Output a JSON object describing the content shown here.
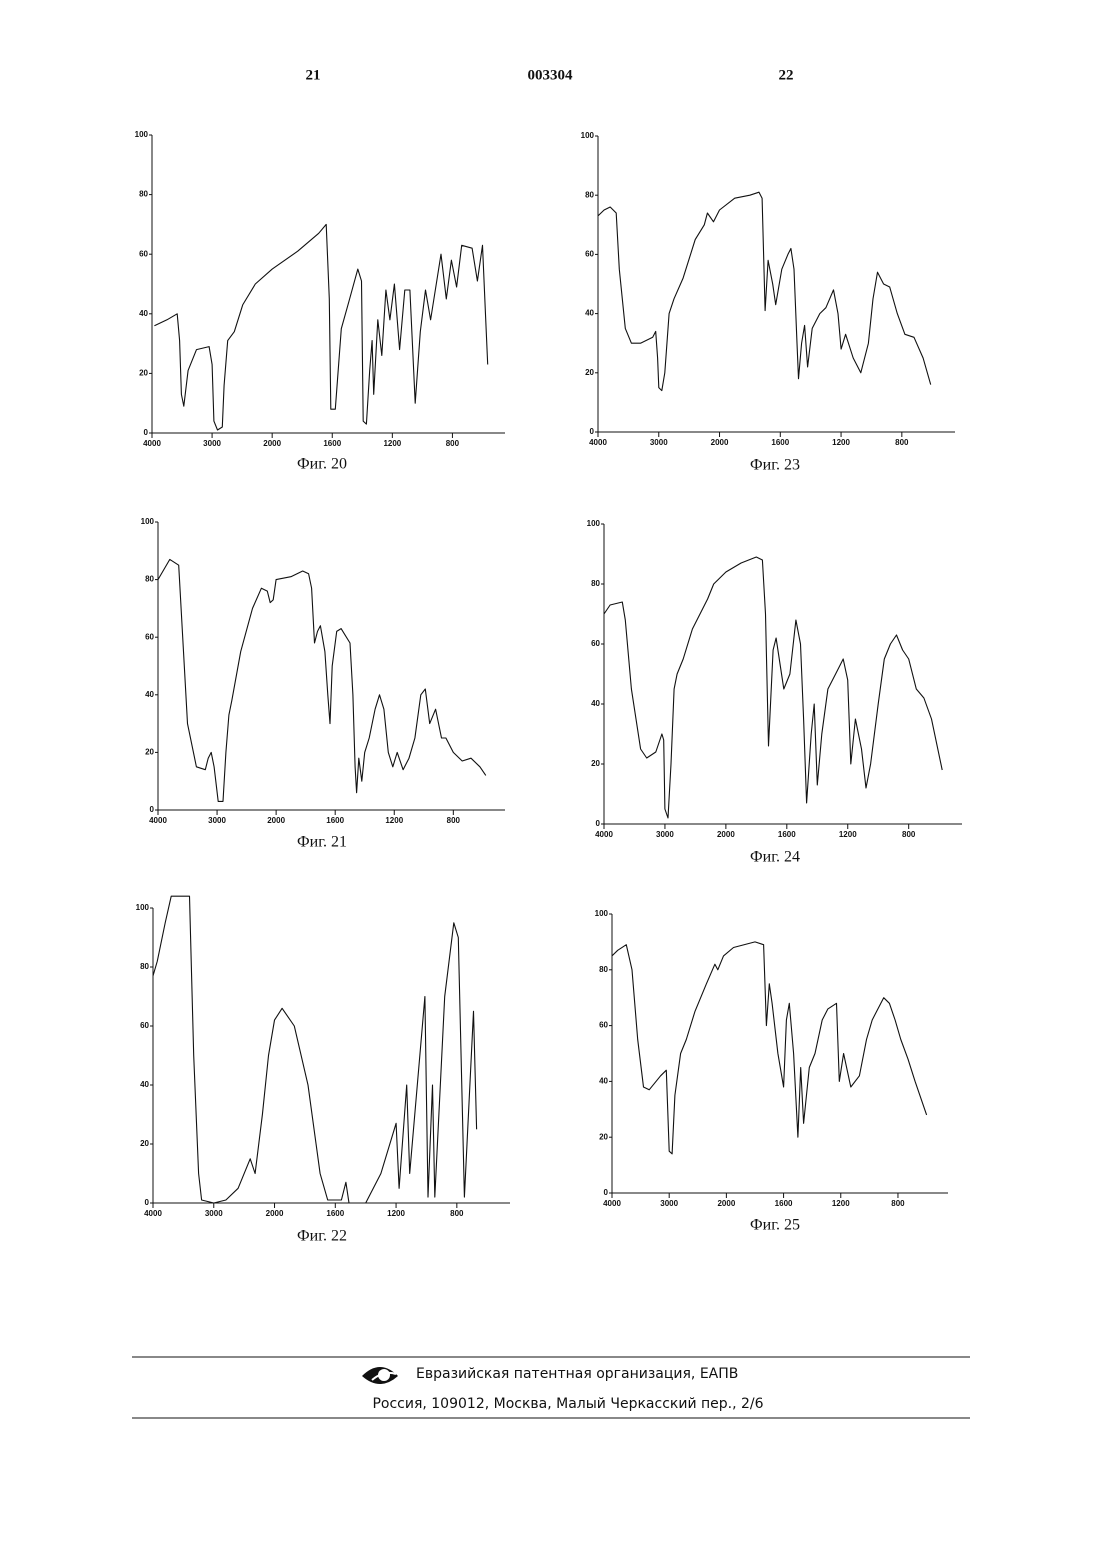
{
  "header": {
    "left_page": "21",
    "doc_number": "003304",
    "right_page": "22"
  },
  "chart_data": [
    {
      "type": "line",
      "caption": "Фиг. 20",
      "color": "#111111",
      "x": [
        3960,
        3750,
        3580,
        3540,
        3510,
        3470,
        3400,
        3260,
        3050,
        3000,
        2970,
        2910,
        2830,
        2800,
        2740,
        2630,
        2490,
        2280,
        2000,
        1830,
        1690,
        1640,
        1620,
        1610,
        1580,
        1540,
        1490,
        1430,
        1405,
        1394,
        1373,
        1351,
        1335,
        1324,
        1297,
        1270,
        1243,
        1216,
        1186,
        1152,
        1117,
        1083,
        1048,
        1014,
        979,
        945,
        876,
        841,
        807,
        772,
        738,
        669,
        634,
        600,
        579,
        565
      ],
      "values": [
        36,
        38,
        40,
        31,
        13,
        9,
        21,
        28,
        29,
        23,
        4,
        1,
        2,
        16,
        31,
        34,
        43,
        50,
        55,
        61,
        67,
        70,
        45,
        8,
        8,
        35,
        44,
        55,
        51,
        4,
        3,
        21,
        31,
        13,
        38,
        26,
        48,
        38,
        50,
        28,
        48,
        48,
        10,
        34,
        48,
        38,
        60,
        45,
        58,
        49,
        63,
        62,
        51,
        63,
        39,
        23
      ],
      "xlim": [
        4000,
        450
      ],
      "xticks": [
        4000,
        3000,
        2000,
        1600,
        1200,
        800
      ],
      "ylim": [
        0,
        100
      ],
      "yticks": [
        0,
        20,
        40,
        60,
        80,
        100
      ]
    },
    {
      "type": "line",
      "caption": "Фиг. 23",
      "color": "#111111",
      "x": [
        4000,
        3900,
        3800,
        3700,
        3650,
        3550,
        3450,
        3300,
        3100,
        3050,
        3020,
        3000,
        2950,
        2900,
        2830,
        2750,
        2600,
        2400,
        2250,
        2200,
        2100,
        2000,
        1900,
        1800,
        1740,
        1720,
        1700,
        1680,
        1650,
        1630,
        1590,
        1550,
        1530,
        1510,
        1490,
        1480,
        1460,
        1440,
        1420,
        1390,
        1340,
        1300,
        1250,
        1220,
        1200,
        1170,
        1120,
        1070,
        1020,
        990,
        960,
        920,
        880,
        830,
        780,
        720,
        660,
        610
      ],
      "values": [
        73,
        75,
        76,
        74,
        55,
        35,
        30,
        30,
        32,
        34,
        25,
        15,
        14,
        20,
        40,
        45,
        52,
        65,
        70,
        74,
        71,
        75,
        79,
        80,
        81,
        79,
        41,
        58,
        50,
        43,
        55,
        60,
        62,
        55,
        30,
        18,
        30,
        36,
        22,
        35,
        40,
        42,
        48,
        40,
        28,
        33,
        25,
        20,
        30,
        45,
        54,
        50,
        49,
        40,
        33,
        32,
        25,
        16
      ],
      "xlim": [
        4000,
        450
      ],
      "xticks": [
        4000,
        3000,
        2000,
        1600,
        1200,
        800
      ],
      "ylim": [
        0,
        100
      ],
      "yticks": [
        0,
        20,
        40,
        60,
        80,
        100
      ]
    },
    {
      "type": "line",
      "caption": "Фиг. 21",
      "color": "#111111",
      "x": [
        4000,
        3800,
        3650,
        3500,
        3350,
        3200,
        3150,
        3100,
        3050,
        2980,
        2900,
        2850,
        2800,
        2750,
        2600,
        2400,
        2250,
        2150,
        2100,
        2050,
        2000,
        1900,
        1820,
        1780,
        1760,
        1740,
        1720,
        1700,
        1670,
        1650,
        1635,
        1620,
        1590,
        1560,
        1500,
        1480,
        1465,
        1455,
        1440,
        1420,
        1400,
        1370,
        1330,
        1300,
        1270,
        1240,
        1210,
        1180,
        1140,
        1100,
        1060,
        1020,
        990,
        960,
        920,
        880,
        850,
        800,
        740,
        680,
        620,
        580
      ],
      "values": [
        80,
        87,
        85,
        30,
        15,
        14,
        18,
        20,
        15,
        3,
        3,
        20,
        33,
        38,
        55,
        70,
        77,
        76,
        72,
        73,
        80,
        81,
        83,
        82,
        77,
        58,
        62,
        64,
        55,
        40,
        30,
        50,
        62,
        63,
        58,
        40,
        15,
        6,
        18,
        10,
        20,
        25,
        35,
        40,
        35,
        20,
        15,
        20,
        14,
        18,
        25,
        40,
        42,
        30,
        35,
        25,
        25,
        20,
        17,
        18,
        15,
        12
      ],
      "xlim": [
        4000,
        450
      ],
      "xticks": [
        4000,
        3000,
        2000,
        1600,
        1200,
        800
      ],
      "ylim": [
        0,
        100
      ],
      "yticks": [
        0,
        20,
        40,
        60,
        80,
        100
      ]
    },
    {
      "type": "line",
      "caption": "Фиг. 24",
      "color": "#111111",
      "x": [
        4000,
        3900,
        3700,
        3650,
        3550,
        3400,
        3300,
        3150,
        3050,
        3020,
        3000,
        2950,
        2900,
        2850,
        2800,
        2700,
        2550,
        2300,
        2200,
        2100,
        2000,
        1900,
        1800,
        1760,
        1740,
        1720,
        1690,
        1670,
        1620,
        1580,
        1540,
        1510,
        1490,
        1470,
        1440,
        1420,
        1400,
        1370,
        1330,
        1280,
        1230,
        1200,
        1180,
        1150,
        1110,
        1080,
        1050,
        1000,
        960,
        920,
        880,
        840,
        800,
        750,
        700,
        650,
        580
      ],
      "values": [
        70,
        73,
        74,
        68,
        45,
        25,
        22,
        24,
        30,
        28,
        5,
        2,
        20,
        45,
        50,
        55,
        65,
        75,
        80,
        82,
        84,
        87,
        89,
        88,
        70,
        26,
        58,
        62,
        45,
        50,
        68,
        60,
        35,
        7,
        30,
        40,
        13,
        30,
        45,
        50,
        55,
        48,
        20,
        35,
        25,
        12,
        20,
        40,
        55,
        60,
        63,
        58,
        55,
        45,
        42,
        35,
        18
      ],
      "xlim": [
        4000,
        450
      ],
      "xticks": [
        4000,
        3000,
        2000,
        1600,
        1200,
        800
      ],
      "ylim": [
        0,
        100
      ],
      "yticks": [
        0,
        20,
        40,
        60,
        80,
        100
      ]
    },
    {
      "type": "line",
      "caption": "Фиг. 22",
      "color": "#111111",
      "x": [
        4000,
        3930,
        3800,
        3700,
        3400,
        3330,
        3250,
        3200,
        3000,
        2800,
        2600,
        2400,
        2320,
        2200,
        2100,
        2000,
        1950,
        1870,
        1780,
        1700,
        1650,
        1560,
        1530,
        1510,
        1400,
        1300,
        1200,
        1180,
        1130,
        1110,
        1010,
        990,
        960,
        945,
        880,
        820,
        790,
        750,
        690,
        670
      ],
      "values": [
        77,
        82,
        95,
        104,
        104,
        50,
        10,
        1,
        0,
        1,
        5,
        15,
        10,
        30,
        50,
        62,
        66,
        60,
        40,
        10,
        1,
        1,
        7,
        0,
        0,
        10,
        27,
        5,
        40,
        10,
        70,
        2,
        40,
        2,
        70,
        95,
        90,
        2,
        65,
        25
      ],
      "xlim": [
        4000,
        450
      ],
      "xticks": [
        4000,
        3000,
        2000,
        1600,
        1200,
        800
      ],
      "ylim": [
        0,
        100
      ],
      "yticks": [
        0,
        20,
        40,
        60,
        80,
        100
      ]
    },
    {
      "type": "line",
      "caption": "Фиг. 25",
      "color": "#111111",
      "x": [
        4000,
        3900,
        3750,
        3650,
        3550,
        3450,
        3350,
        3150,
        3050,
        3000,
        2950,
        2900,
        2800,
        2700,
        2550,
        2350,
        2200,
        2150,
        2050,
        1950,
        1800,
        1740,
        1720,
        1700,
        1680,
        1640,
        1600,
        1580,
        1560,
        1530,
        1500,
        1480,
        1460,
        1420,
        1380,
        1330,
        1290,
        1230,
        1210,
        1180,
        1130,
        1070,
        1020,
        980,
        950,
        900,
        860,
        820,
        780,
        730,
        680,
        600
      ],
      "values": [
        85,
        87,
        89,
        80,
        55,
        38,
        37,
        42,
        44,
        15,
        14,
        35,
        50,
        55,
        65,
        75,
        82,
        80,
        85,
        88,
        90,
        89,
        60,
        75,
        68,
        50,
        38,
        62,
        68,
        50,
        20,
        45,
        25,
        45,
        50,
        62,
        66,
        68,
        40,
        50,
        38,
        42,
        55,
        62,
        65,
        70,
        68,
        62,
        55,
        48,
        40,
        28
      ],
      "xlim": [
        4000,
        450
      ],
      "xticks": [
        4000,
        3000,
        2000,
        1600,
        1200,
        800
      ],
      "ylim": [
        0,
        100
      ],
      "yticks": [
        0,
        20,
        40,
        60,
        80,
        100
      ]
    }
  ],
  "footer": {
    "organization": "Евразийская патентная организация, ЕАПВ",
    "address": "Россия, 109012, Москва, Малый Черкасский пер., 2/6"
  }
}
